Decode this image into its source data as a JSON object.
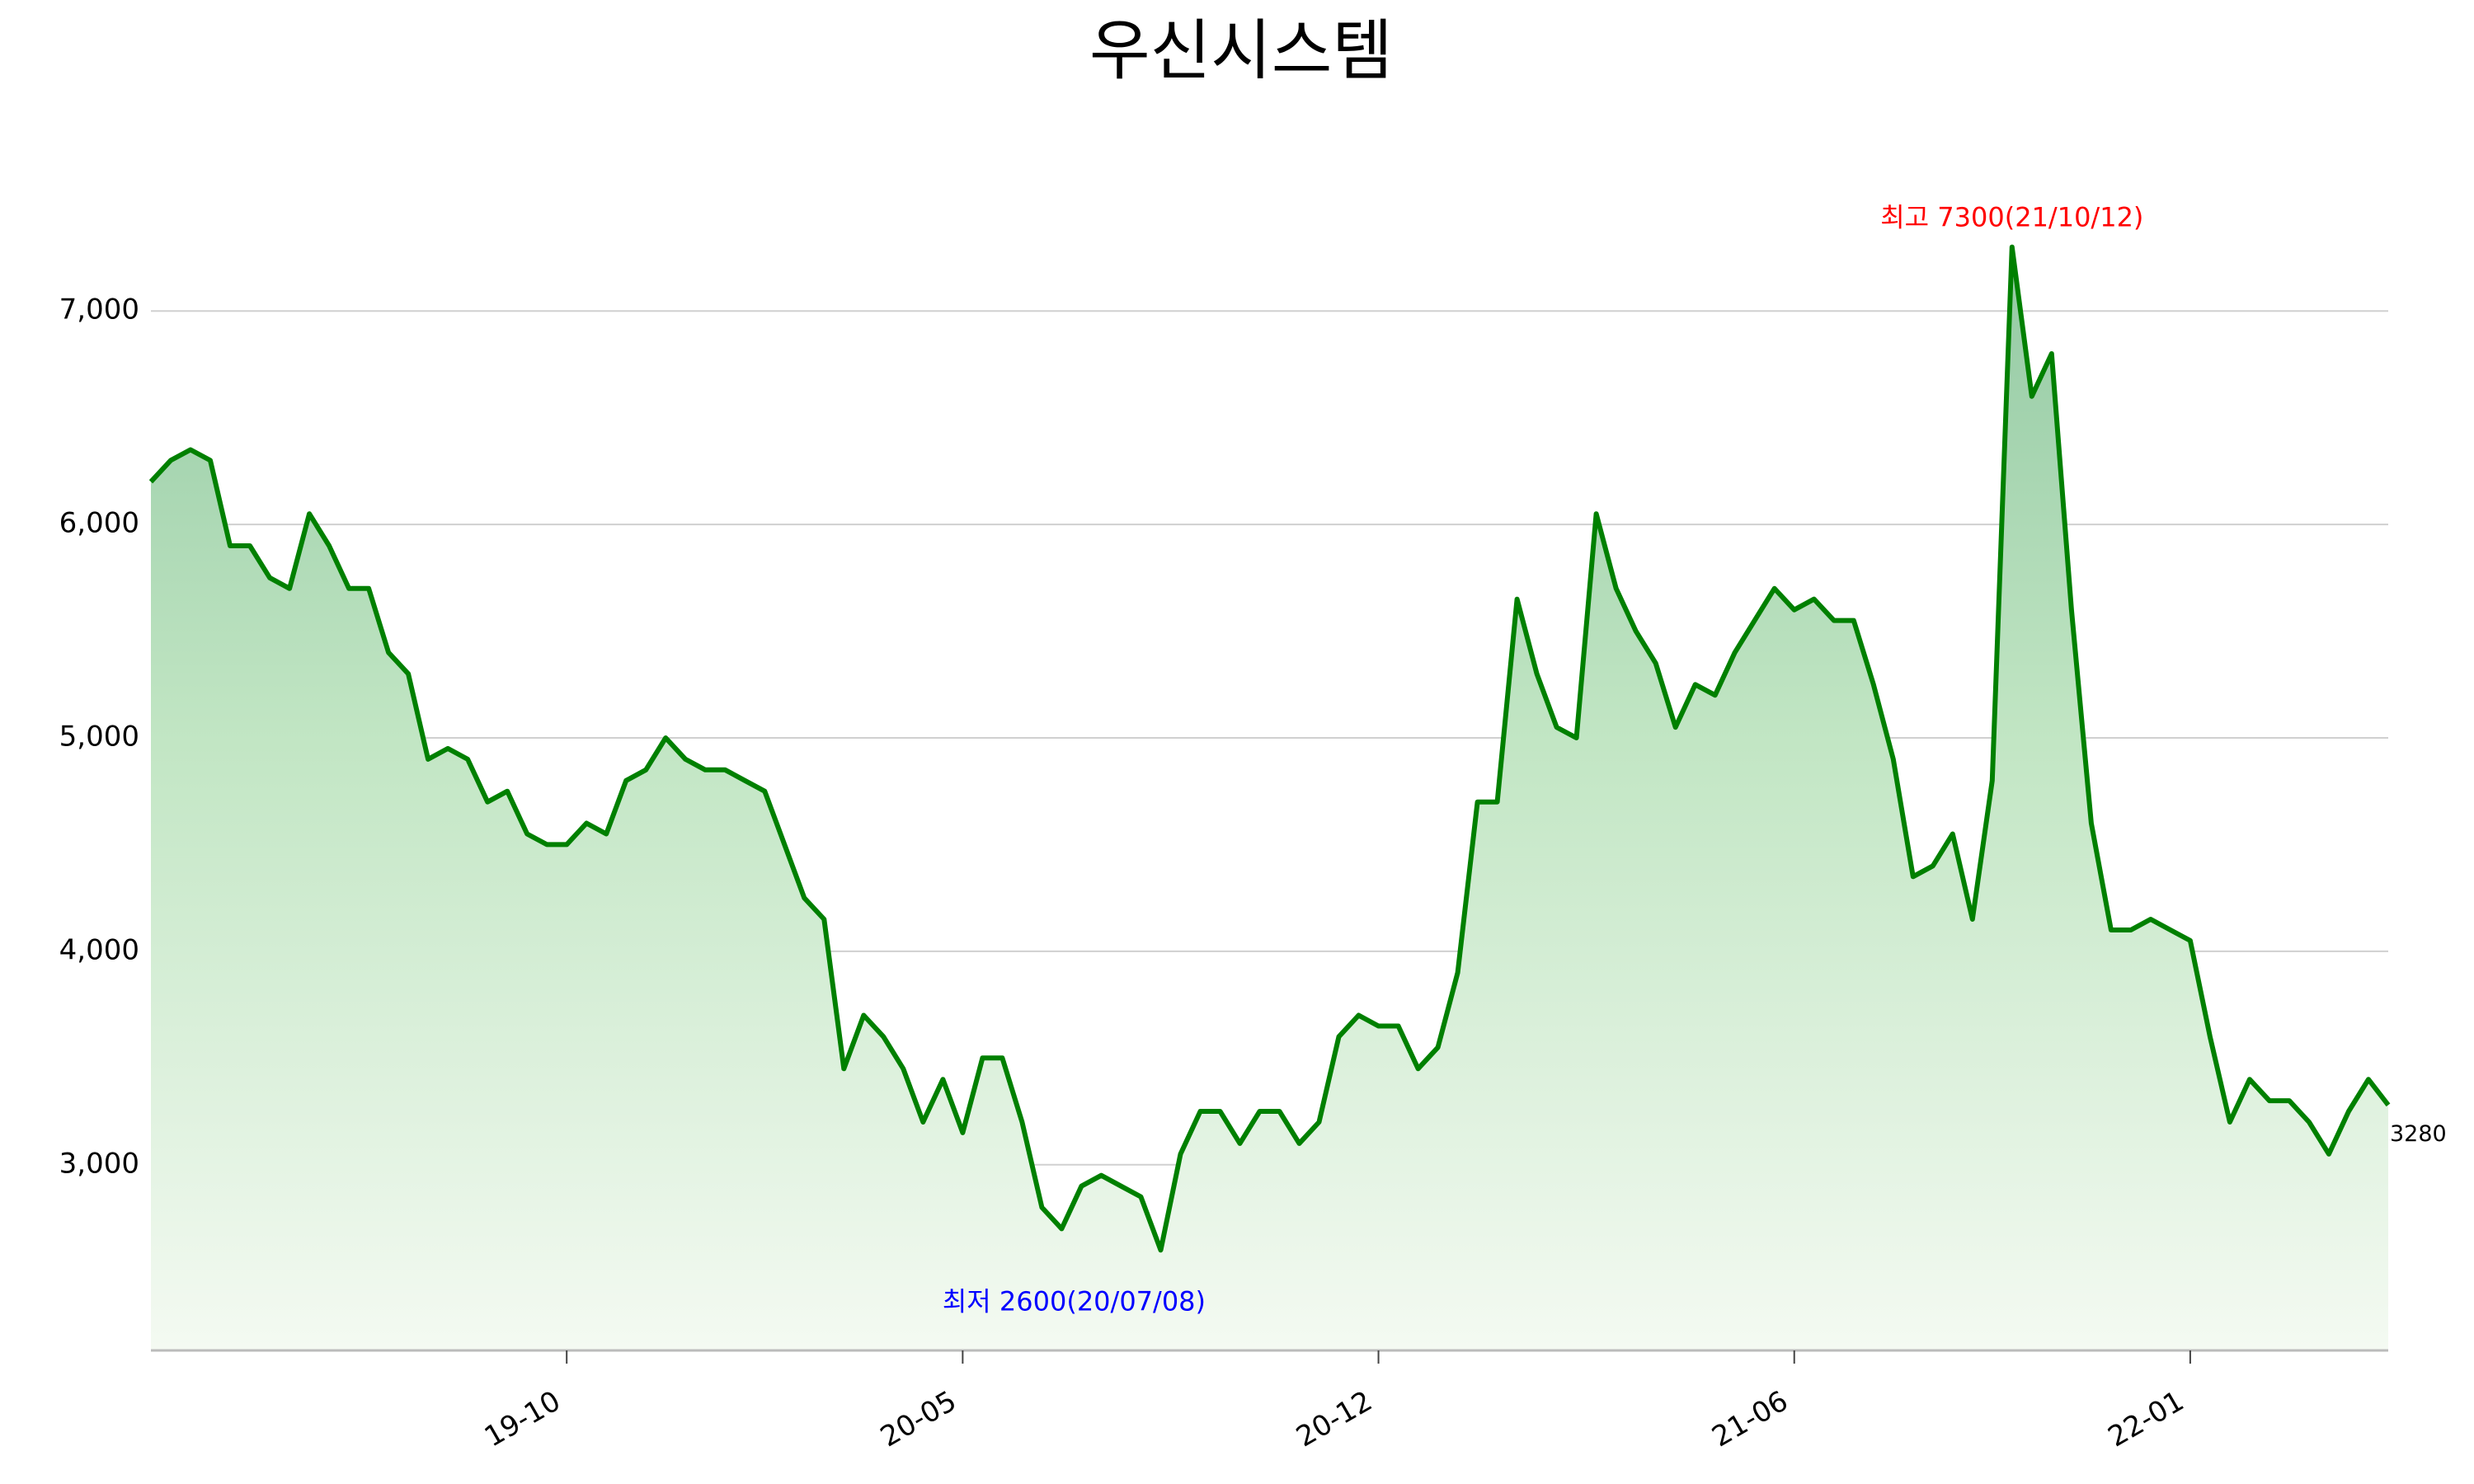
{
  "chart_data": {
    "type": "line",
    "title": "우신시스템",
    "x": [
      "19-03",
      "19-03",
      "19-03",
      "19-04",
      "19-04",
      "19-04",
      "19-05",
      "19-05",
      "19-05",
      "19-06",
      "19-06",
      "19-06",
      "19-07",
      "19-07",
      "19-07",
      "19-08",
      "19-08",
      "19-08",
      "19-09",
      "19-09",
      "19-09",
      "19-10",
      "19-10",
      "19-10",
      "19-11",
      "19-11",
      "19-11",
      "19-12",
      "19-12",
      "19-12",
      "20-01",
      "20-01",
      "20-01",
      "20-02",
      "20-02",
      "20-02",
      "20-03",
      "20-03",
      "20-03",
      "20-04",
      "20-04",
      "20-05",
      "20-05",
      "20-05",
      "20-05",
      "20-06",
      "20-06",
      "20-06",
      "20-06",
      "20-07",
      "20-07",
      "20-07",
      "20-08",
      "20-08",
      "20-08",
      "20-09",
      "20-09",
      "20-09",
      "20-10",
      "20-10",
      "20-11",
      "20-11",
      "20-12",
      "20-12",
      "20-12",
      "20-12",
      "21-01",
      "21-01",
      "21-01",
      "21-01",
      "21-02",
      "21-02",
      "21-02",
      "21-02",
      "21-03",
      "21-03",
      "21-03",
      "21-04",
      "21-04",
      "21-04",
      "21-05",
      "21-05",
      "21-05",
      "21-06",
      "21-06",
      "21-06",
      "21-07",
      "21-07",
      "21-07",
      "21-08",
      "21-08",
      "21-08",
      "21-09",
      "21-09",
      "21-10",
      "21-10",
      "21-10",
      "21-11",
      "21-11",
      "21-11",
      "21-12",
      "21-12",
      "21-12",
      "22-01",
      "22-01",
      "22-01",
      "22-02",
      "22-02",
      "22-02",
      "22-03",
      "22-03",
      "22-03",
      "22-04",
      "22-04"
    ],
    "values": [
      6200,
      6300,
      6350,
      6300,
      5900,
      5900,
      5750,
      5700,
      6050,
      5900,
      5700,
      5700,
      5400,
      5300,
      4900,
      4950,
      4900,
      4700,
      4750,
      4550,
      4500,
      4500,
      4600,
      4550,
      4800,
      4850,
      5000,
      4900,
      4850,
      4850,
      4800,
      4750,
      4500,
      4250,
      4150,
      3450,
      3700,
      3600,
      3450,
      3200,
      3400,
      3150,
      3500,
      3500,
      3200,
      2800,
      2700,
      2900,
      2950,
      2900,
      2850,
      2600,
      3050,
      3250,
      3250,
      3100,
      3250,
      3250,
      3100,
      3200,
      3600,
      3700,
      3650,
      3650,
      3450,
      3550,
      3900,
      4700,
      4700,
      5650,
      5300,
      5050,
      5000,
      6050,
      5700,
      5500,
      5350,
      5050,
      5250,
      5200,
      5400,
      5550,
      5700,
      5600,
      5650,
      5550,
      5550,
      5250,
      4900,
      4350,
      4400,
      4550,
      4150,
      4800,
      7300,
      6600,
      6800,
      5600,
      4600,
      4100,
      4100,
      4150,
      4100,
      4050,
      3600,
      3200,
      3400,
      3300,
      3300,
      3200,
      3050,
      3250,
      3400,
      3280
    ],
    "color": "#008000",
    "xticks": [
      "19-10",
      "20-05",
      "20-12",
      "21-06",
      "22-01"
    ],
    "ylim": [
      2130,
      7700
    ],
    "yticks": [
      {
        "value": 3000,
        "label": "3,000"
      },
      {
        "value": 4000,
        "label": "4,000"
      },
      {
        "value": 5000,
        "label": "5,000"
      },
      {
        "value": 6000,
        "label": "6,000"
      },
      {
        "value": 7000,
        "label": "7,000"
      }
    ],
    "grid": true,
    "max_label": "최고 7300(21/10/12)",
    "max_color": "#ff0000",
    "min_label": "최저 2600(20/07/08)",
    "min_color": "#0000ff"
  }
}
